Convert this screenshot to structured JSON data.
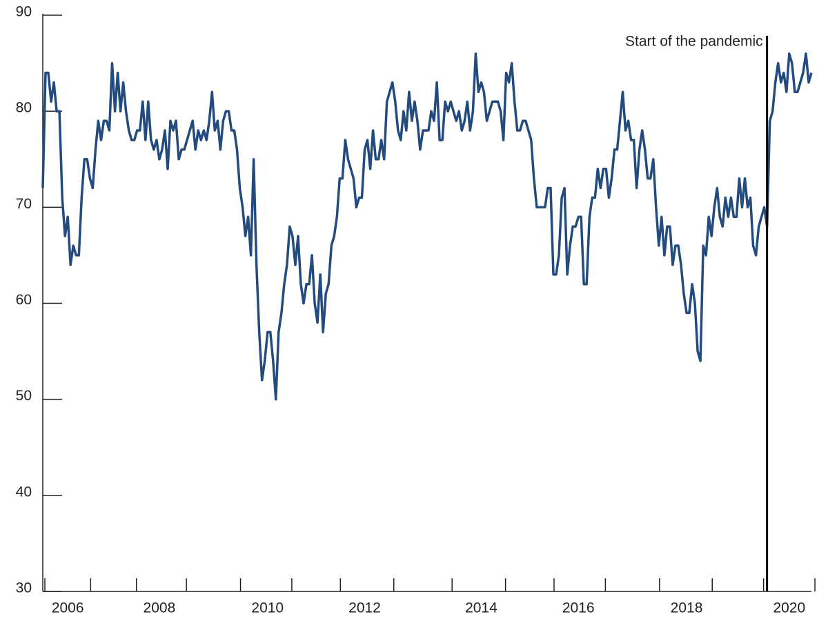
{
  "chart_data": {
    "type": "line",
    "categories": [
      null,
      null,
      null,
      null,
      null,
      null,
      null,
      null,
      null,
      "2006",
      null,
      null,
      null,
      null,
      null,
      null,
      null,
      null,
      null,
      null,
      null,
      null,
      null,
      null,
      null,
      null,
      null,
      null,
      null,
      null,
      null,
      null,
      null,
      null,
      null,
      null,
      null,
      null,
      null,
      null,
      null,
      null,
      "2008",
      null,
      null,
      null,
      null,
      null,
      null,
      null,
      null,
      null,
      null,
      null,
      null,
      null,
      null,
      null,
      null,
      null,
      null,
      null,
      null,
      null,
      null,
      null,
      null,
      null,
      null,
      null,
      null,
      null,
      null,
      null,
      null,
      null,
      null,
      null,
      null,
      null,
      null,
      "2010",
      null,
      null,
      null,
      null,
      null,
      null,
      null,
      null,
      null,
      null,
      null,
      null,
      null,
      null,
      null,
      null,
      null,
      null,
      null,
      null,
      null,
      null,
      null,
      null,
      null,
      null,
      null,
      null,
      null,
      null,
      null,
      null,
      null,
      null,
      "2012",
      null,
      null,
      null,
      null,
      null,
      null,
      null,
      null,
      null,
      null,
      null,
      null,
      null,
      null,
      null,
      null,
      null,
      null,
      null,
      null,
      null,
      null,
      null,
      null,
      null,
      null,
      null,
      null,
      null,
      null,
      null,
      null,
      null,
      null,
      null,
      null,
      null,
      null,
      null,
      null,
      null,
      "2014",
      null,
      null,
      null,
      null,
      null,
      null,
      null,
      null,
      null,
      null,
      null,
      null,
      null,
      null,
      null,
      null,
      null,
      null,
      null,
      null,
      null,
      null,
      null,
      null,
      null,
      null,
      null,
      null,
      null,
      null,
      null,
      null,
      null,
      null,
      "2016",
      null,
      null,
      null,
      null,
      null,
      null,
      null,
      null,
      null,
      null,
      null,
      null,
      null,
      null,
      null,
      null,
      null,
      null,
      null,
      null,
      null,
      null,
      null,
      null,
      null,
      null,
      null,
      null,
      null,
      null,
      null,
      null,
      null,
      null,
      null,
      null,
      null,
      null,
      "2018",
      null,
      null,
      null,
      null,
      null,
      null,
      null,
      null,
      null,
      null,
      null,
      null,
      null,
      null,
      null,
      null,
      null,
      null,
      null,
      null,
      null,
      null,
      null,
      null,
      null,
      null,
      null,
      null,
      null,
      null,
      null,
      null,
      null,
      null,
      null,
      null,
      "2020",
      null,
      null,
      null,
      null,
      null,
      null,
      null,
      null
    ],
    "series": [
      {
        "color": "#234b7e",
        "values": [
          72,
          84,
          84,
          81,
          83,
          80,
          80,
          71,
          67,
          69,
          64,
          66,
          65,
          65,
          71,
          75,
          75,
          73,
          72,
          76,
          79,
          77,
          79,
          79,
          78,
          85,
          80,
          84,
          80,
          83,
          80,
          78,
          77,
          77,
          78,
          78,
          81,
          77,
          81,
          77,
          76,
          77,
          75,
          76,
          78,
          74,
          79,
          78,
          79,
          75,
          76,
          76,
          77,
          78,
          79,
          76,
          78,
          77,
          78,
          77,
          79,
          82,
          78,
          79,
          76,
          79,
          80,
          80,
          78,
          78,
          76,
          72,
          70,
          67,
          69,
          65,
          75,
          64,
          57,
          52,
          54,
          57,
          57,
          54,
          50,
          57,
          59,
          62,
          64,
          68,
          67,
          64,
          67,
          62,
          60,
          62,
          62,
          65,
          60,
          58,
          63,
          57,
          61,
          62,
          66,
          67,
          69,
          73,
          73,
          77,
          75,
          74,
          73,
          70,
          71,
          71,
          76,
          77,
          74,
          78,
          75,
          75,
          77,
          75,
          81,
          82,
          83,
          81,
          78,
          77,
          80,
          78,
          82,
          79,
          81,
          79,
          76,
          78,
          78,
          78,
          80,
          79,
          83,
          77,
          77,
          81,
          80,
          81,
          80,
          79,
          80,
          78,
          79,
          81,
          78,
          80,
          86,
          82,
          83,
          82,
          79,
          80,
          81,
          81,
          81,
          80,
          77,
          84,
          83,
          85,
          81,
          78,
          78,
          79,
          79,
          78,
          77,
          73,
          70,
          70,
          70,
          70,
          72,
          72,
          63,
          63,
          65,
          71,
          72,
          63,
          66,
          68,
          68,
          69,
          69,
          62,
          62,
          69,
          71,
          71,
          74,
          72,
          74,
          74,
          71,
          73,
          76,
          76,
          79,
          82,
          78,
          79,
          77,
          77,
          72,
          76,
          78,
          76,
          73,
          73,
          75,
          70,
          66,
          69,
          65,
          68,
          68,
          64,
          66,
          66,
          64,
          61,
          59,
          59,
          62,
          60,
          55,
          54,
          66,
          65,
          69,
          67,
          70,
          72,
          69,
          68,
          71,
          69,
          71,
          69,
          69,
          73,
          70,
          73,
          70,
          71,
          66,
          65,
          68,
          69,
          70,
          68,
          79,
          80,
          83,
          85,
          83,
          84,
          82,
          86,
          85,
          82,
          82,
          83,
          84,
          86,
          83,
          84
        ]
      }
    ],
    "ylim": [
      30,
      90
    ],
    "yticks": [
      30,
      40,
      50,
      60,
      70,
      80,
      90
    ],
    "vline": {
      "label": "Start of the pandemic",
      "index": 261
    }
  }
}
